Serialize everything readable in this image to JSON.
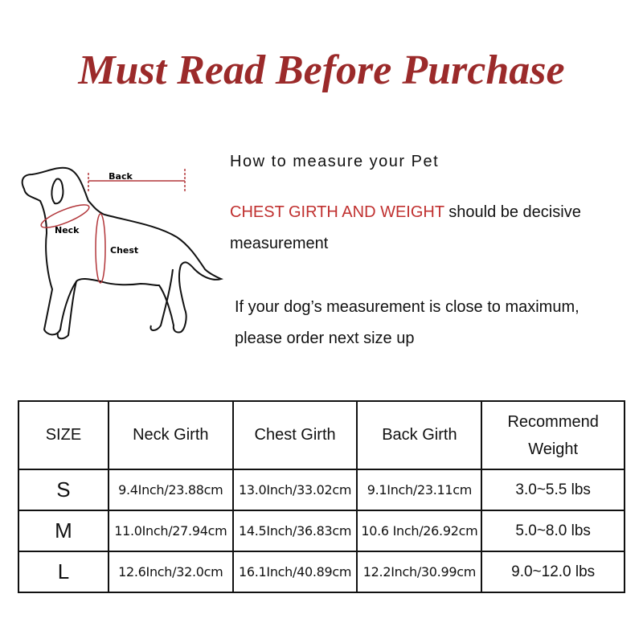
{
  "title": "Must Read Before Purchase",
  "diagram": {
    "back_label": "Back",
    "neck_label": "Neck",
    "chest_label": "Chest",
    "accent": "#b2363a"
  },
  "instructions": {
    "heading": "How to measure your Pet",
    "line1_red": "CHEST GIRTH AND WEIGHT",
    "line1_rest": " should be decisive",
    "line2": "measurement",
    "line3": "If your dog’s measurement is close to maximum,",
    "line4": "please order next size up"
  },
  "table": {
    "headers": [
      "SIZE",
      "Neck Girth",
      "Chest Girth",
      "Back Girth",
      "Recommend Weight"
    ],
    "rows": [
      [
        "S",
        "9.4Inch/23.88cm",
        "13.0Inch/33.02cm",
        "9.1Inch/23.11cm",
        "3.0~5.5 lbs"
      ],
      [
        "M",
        "11.0Inch/27.94cm",
        "14.5Inch/36.83cm",
        "10.6 Inch/26.92cm",
        "5.0~8.0 lbs"
      ],
      [
        "L",
        "12.6Inch/32.0cm",
        "16.1Inch/40.89cm",
        "12.2Inch/30.99cm",
        "9.0~12.0 lbs"
      ]
    ]
  }
}
